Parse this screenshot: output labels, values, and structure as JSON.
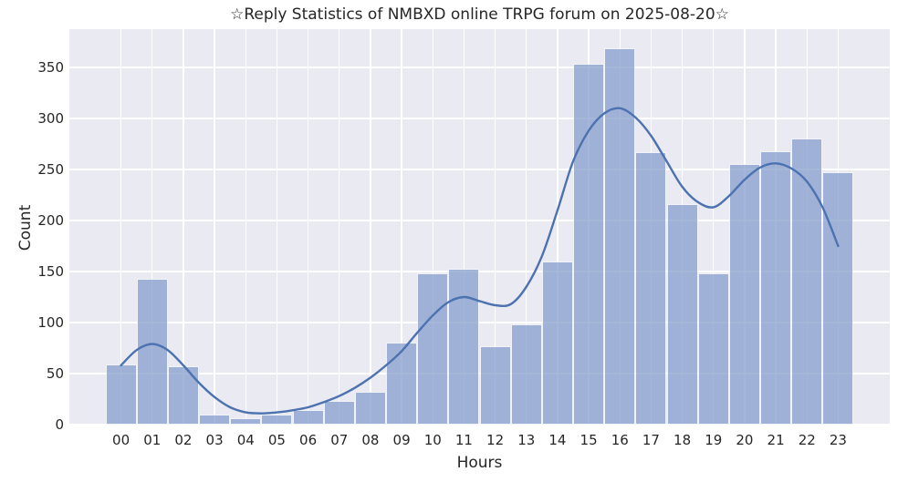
{
  "chart_data": {
    "type": "bar",
    "title": "☆Reply Statistics of NMBXD online TRPG forum on 2025-08-20☆",
    "xlabel": "Hours",
    "ylabel": "Count",
    "categories": [
      "00",
      "01",
      "02",
      "03",
      "04",
      "05",
      "06",
      "07",
      "08",
      "09",
      "10",
      "11",
      "12",
      "13",
      "14",
      "15",
      "16",
      "17",
      "18",
      "19",
      "20",
      "21",
      "22",
      "23"
    ],
    "values": [
      59,
      143,
      57,
      10,
      6,
      10,
      14,
      23,
      32,
      80,
      148,
      153,
      77,
      98,
      160,
      354,
      369,
      267,
      216,
      148,
      255,
      268,
      280,
      247
    ],
    "yticks": [
      0,
      50,
      100,
      150,
      200,
      250,
      300,
      350
    ],
    "ylim": [
      0,
      387.5
    ],
    "grid": true,
    "legend": "none",
    "colors": {
      "bar_fill": "#9fb1d6",
      "bar_edge": "#ffffff",
      "line": "#4c72b0",
      "axes_background": "#eaeaf2",
      "grid": "#ffffff",
      "text": "#262626"
    },
    "line_series": {
      "name": "smoothed-trend",
      "x": [
        0,
        0.5,
        1,
        1.5,
        2,
        2.5,
        3,
        3.5,
        4,
        4.5,
        5,
        5.5,
        6,
        6.5,
        7,
        7.5,
        8,
        8.5,
        9,
        9.5,
        10,
        10.5,
        11,
        11.5,
        12,
        12.5,
        13,
        13.5,
        14,
        14.5,
        15,
        15.5,
        16,
        16.5,
        17,
        17.5,
        18,
        18.5,
        19,
        19.5,
        20,
        20.5,
        21,
        21.5,
        22,
        22.5,
        23
      ],
      "y": [
        58,
        73,
        79,
        73,
        58,
        41,
        27,
        17,
        12,
        11,
        12,
        14,
        17,
        22,
        28,
        36,
        46,
        58,
        72,
        90,
        107,
        120,
        125,
        121,
        117,
        118,
        135,
        165,
        210,
        258,
        288,
        305,
        310,
        301,
        283,
        258,
        233,
        218,
        213,
        224,
        240,
        252,
        256,
        251,
        238,
        213,
        175
      ]
    }
  }
}
